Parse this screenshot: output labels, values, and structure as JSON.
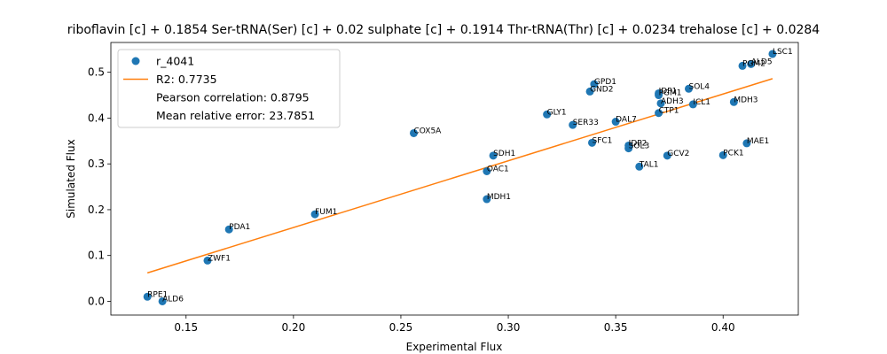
{
  "chart_data": {
    "type": "scatter",
    "title": "riboflavin [c] + 0.1854 Ser-tRNA(Ser) [c] + 0.02 sulphate [c] + 0.1914 Thr-tRNA(Thr) [c] + 0.0234 trehalose [c] + 0.0284",
    "xlabel": "Experimental Flux",
    "ylabel": "Simulated Flux",
    "xlim": [
      0.115,
      0.435
    ],
    "ylim": [
      -0.03,
      0.565
    ],
    "xticks": [
      0.15,
      0.2,
      0.25,
      0.3,
      0.35,
      0.4
    ],
    "xtick_labels": [
      "0.15",
      "0.20",
      "0.25",
      "0.30",
      "0.35",
      "0.40"
    ],
    "yticks": [
      0.0,
      0.1,
      0.2,
      0.3,
      0.4,
      0.5
    ],
    "ytick_labels": [
      "0.0",
      "0.1",
      "0.2",
      "0.3",
      "0.4",
      "0.5"
    ],
    "grid": false,
    "legend_position": "upper-left",
    "legend": [
      {
        "kind": "marker",
        "label": "r_4041"
      },
      {
        "kind": "line",
        "label": "R2: 0.7735"
      },
      {
        "kind": "text",
        "label": "Pearson correlation: 0.8795"
      },
      {
        "kind": "text",
        "label": "Mean relative error: 23.7851"
      }
    ],
    "colors": {
      "points": "#1f77b4",
      "fit_line": "#ff7f0e"
    },
    "fit_line": {
      "x": [
        0.132,
        0.423
      ],
      "y": [
        0.062,
        0.486
      ]
    },
    "points": [
      {
        "label": "RPE1",
        "x": 0.132,
        "y": 0.01
      },
      {
        "label": "ALD6",
        "x": 0.139,
        "y": 0.0
      },
      {
        "label": "ZWF1",
        "x": 0.16,
        "y": 0.089
      },
      {
        "label": "PDA1",
        "x": 0.17,
        "y": 0.157
      },
      {
        "label": "FUM1",
        "x": 0.21,
        "y": 0.19
      },
      {
        "label": "COX5A",
        "x": 0.256,
        "y": 0.367
      },
      {
        "label": "MDH1",
        "x": 0.29,
        "y": 0.223
      },
      {
        "label": "OAC1",
        "x": 0.29,
        "y": 0.284
      },
      {
        "label": "SDH1",
        "x": 0.293,
        "y": 0.318
      },
      {
        "label": "GLY1",
        "x": 0.318,
        "y": 0.408
      },
      {
        "label": "SER33",
        "x": 0.33,
        "y": 0.385
      },
      {
        "label": "GND2",
        "x": 0.338,
        "y": 0.458
      },
      {
        "label": "GPD1",
        "x": 0.34,
        "y": 0.474
      },
      {
        "label": "SFC1",
        "x": 0.339,
        "y": 0.346
      },
      {
        "label": "DAL7",
        "x": 0.35,
        "y": 0.392
      },
      {
        "label": "IDP2",
        "x": 0.356,
        "y": 0.34
      },
      {
        "label": "SOL3",
        "x": 0.356,
        "y": 0.334
      },
      {
        "label": "TAL1",
        "x": 0.361,
        "y": 0.294
      },
      {
        "label": "IDP1",
        "x": 0.37,
        "y": 0.454
      },
      {
        "label": "PGM1",
        "x": 0.37,
        "y": 0.45
      },
      {
        "label": "ADH3",
        "x": 0.371,
        "y": 0.432
      },
      {
        "label": "CTP1",
        "x": 0.37,
        "y": 0.411
      },
      {
        "label": "GCV2",
        "x": 0.374,
        "y": 0.318
      },
      {
        "label": "SOL4",
        "x": 0.384,
        "y": 0.464
      },
      {
        "label": "ICL1",
        "x": 0.386,
        "y": 0.43
      },
      {
        "label": "PCK1",
        "x": 0.4,
        "y": 0.319
      },
      {
        "label": "MDH3",
        "x": 0.405,
        "y": 0.435
      },
      {
        "label": "MAE1",
        "x": 0.411,
        "y": 0.345
      },
      {
        "label": "PGM2",
        "x": 0.409,
        "y": 0.514
      },
      {
        "label": "ALD5",
        "x": 0.413,
        "y": 0.518
      },
      {
        "label": "LSC1",
        "x": 0.423,
        "y": 0.54
      }
    ]
  }
}
